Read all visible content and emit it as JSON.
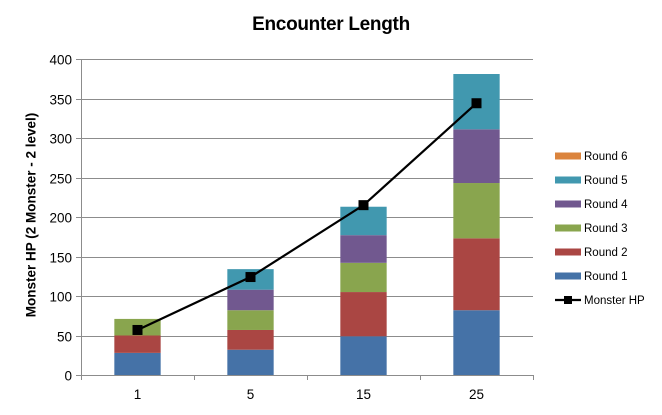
{
  "chart_data": {
    "type": "bar",
    "stacked": true,
    "title": "Encounter Length",
    "xlabel": "",
    "ylabel": "Monster HP (2 Monster - 2 level)",
    "ylim": [
      0,
      400
    ],
    "yticks": [
      0,
      50,
      100,
      150,
      200,
      250,
      300,
      350,
      400
    ],
    "grid": true,
    "legend_position": "right",
    "categories": [
      "1",
      "5",
      "15",
      "25"
    ],
    "series": [
      {
        "name": "Round 1",
        "type": "bar",
        "color": "#4572A7",
        "values": [
          28,
          32,
          49,
          82
        ]
      },
      {
        "name": "Round 2",
        "type": "bar",
        "color": "#AA4643",
        "values": [
          22,
          25,
          56,
          91
        ]
      },
      {
        "name": "Round 3",
        "type": "bar",
        "color": "#89A54E",
        "values": [
          21,
          25,
          37,
          70
        ]
      },
      {
        "name": "Round 4",
        "type": "bar",
        "color": "#71588F",
        "values": [
          0,
          26,
          35,
          68
        ]
      },
      {
        "name": "Round 5",
        "type": "bar",
        "color": "#4198AF",
        "values": [
          0,
          26,
          36,
          70
        ]
      },
      {
        "name": "Round 6",
        "type": "bar",
        "color": "#DB843D",
        "values": [
          0,
          0,
          0,
          0
        ]
      },
      {
        "name": "Monster HP",
        "type": "line",
        "color": "#000000",
        "marker": "square",
        "values": [
          57,
          124,
          215,
          344
        ]
      }
    ],
    "legend": [
      "Round 6",
      "Round 5",
      "Round 4",
      "Round 3",
      "Round 2",
      "Round 1",
      "Monster HP"
    ]
  }
}
